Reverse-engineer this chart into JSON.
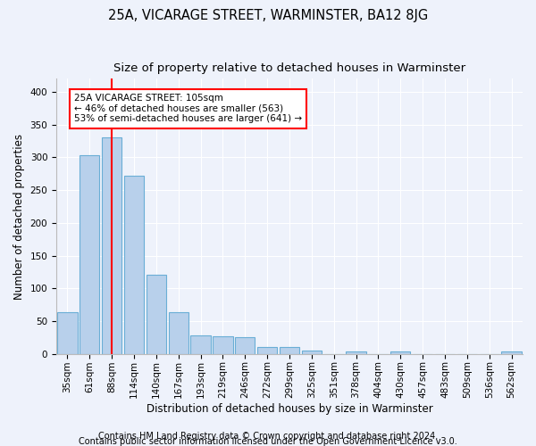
{
  "title1": "25A, VICARAGE STREET, WARMINSTER, BA12 8JG",
  "title2": "Size of property relative to detached houses in Warminster",
  "xlabel": "Distribution of detached houses by size in Warminster",
  "ylabel": "Number of detached properties",
  "categories": [
    "35sqm",
    "61sqm",
    "88sqm",
    "114sqm",
    "140sqm",
    "167sqm",
    "193sqm",
    "219sqm",
    "246sqm",
    "272sqm",
    "299sqm",
    "325sqm",
    "351sqm",
    "378sqm",
    "404sqm",
    "430sqm",
    "457sqm",
    "483sqm",
    "509sqm",
    "536sqm",
    "562sqm"
  ],
  "values": [
    63,
    303,
    330,
    272,
    121,
    64,
    28,
    27,
    25,
    11,
    11,
    5,
    0,
    4,
    0,
    3,
    0,
    0,
    0,
    0,
    3
  ],
  "bar_color": "#b8d0eb",
  "bar_edge_color": "#6aaed6",
  "vline_x": 2,
  "annotation_text": "25A VICARAGE STREET: 105sqm\n← 46% of detached houses are smaller (563)\n53% of semi-detached houses are larger (641) →",
  "annotation_box_color": "white",
  "annotation_box_edge": "red",
  "ylim": [
    0,
    420
  ],
  "yticks": [
    0,
    50,
    100,
    150,
    200,
    250,
    300,
    350,
    400
  ],
  "footer1": "Contains HM Land Registry data © Crown copyright and database right 2024.",
  "footer2": "Contains public sector information licensed under the Open Government Licence v3.0.",
  "bg_color": "#eef2fb",
  "plot_bg_color": "#eef2fb",
  "grid_color": "white",
  "title1_fontsize": 10.5,
  "title2_fontsize": 9.5,
  "xlabel_fontsize": 8.5,
  "ylabel_fontsize": 8.5,
  "tick_fontsize": 7.5,
  "annot_fontsize": 7.5,
  "footer_fontsize": 7
}
